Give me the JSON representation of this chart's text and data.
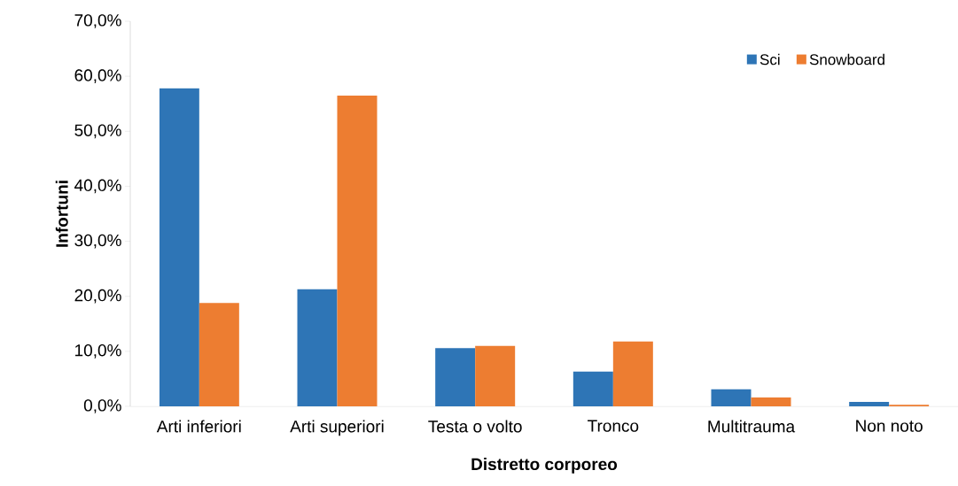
{
  "chart_data": {
    "type": "bar",
    "xlabel": "Distretto corporeo",
    "ylabel": "Infortuni",
    "categories": [
      "Arti inferiori",
      "Arti superiori",
      "Testa o volto",
      "Tronco",
      "Multitrauma",
      "Non noto"
    ],
    "series": [
      {
        "name": "Sci",
        "color": "#2e75b6",
        "values": [
          57.8,
          21.3,
          10.6,
          6.3,
          3.1,
          0.8
        ]
      },
      {
        "name": "Snowboard",
        "color": "#ed7d31",
        "values": [
          18.8,
          56.5,
          11.0,
          11.8,
          1.6,
          0.3
        ]
      }
    ],
    "ylim": [
      0,
      70
    ],
    "yticks": [
      {
        "value": 0,
        "label": "0,0%"
      },
      {
        "value": 10,
        "label": "10,0%"
      },
      {
        "value": 20,
        "label": "20,0%"
      },
      {
        "value": 30,
        "label": "30,0%"
      },
      {
        "value": 40,
        "label": "40,0%"
      },
      {
        "value": 50,
        "label": "50,0%"
      },
      {
        "value": 60,
        "label": "60,0%"
      },
      {
        "value": 70,
        "label": "70,0%"
      }
    ],
    "grid": false,
    "legend": "top right"
  }
}
